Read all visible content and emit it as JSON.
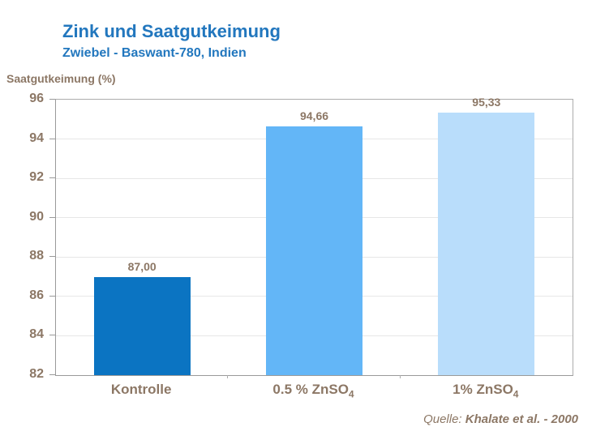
{
  "header": {
    "title": "Zink und Saatgutkeimung",
    "subtitle": "Zwiebel - Baswant-780, Indien"
  },
  "source": {
    "prefix": "Quelle: ",
    "citation": "Khalate et al. -  2000"
  },
  "colors": {
    "title_blue": "#2277BE",
    "text_taupe": "#8C7765",
    "axis_line": "#9A9A9A",
    "frame_border": "#ACACAC",
    "gridline": "#E7E7E7",
    "bar_kontrolle": "#0B74C2",
    "bar_05_znso4": "#63B6F7",
    "bar_1_znso4": "#B9DDFB"
  },
  "chart_data": {
    "type": "bar",
    "title": "Zink und Saatgutkeimung",
    "subtitle": "Zwiebel - Baswant-780, Indien",
    "ylabel": "Saatgutkeimung (%)",
    "xlabel": "",
    "categories": [
      "Kontrolle",
      "0.5 % ZnSO4",
      "1% ZnSO4"
    ],
    "category_parts": [
      {
        "main": "Kontrolle",
        "sub": ""
      },
      {
        "main": "0.5 % ZnSO",
        "sub": "4"
      },
      {
        "main": "1% ZnSO",
        "sub": "4"
      }
    ],
    "values": [
      87.0,
      94.66,
      95.33
    ],
    "value_labels": [
      "87,00",
      "94,66",
      "95,33"
    ],
    "bar_colors": [
      "#0B74C2",
      "#63B6F7",
      "#B9DDFB"
    ],
    "ylim": [
      82,
      96
    ],
    "yticks": [
      82,
      84,
      86,
      88,
      90,
      92,
      94,
      96
    ],
    "grid": true,
    "legend": false,
    "source": "Quelle: Khalate et al. - 2000"
  }
}
